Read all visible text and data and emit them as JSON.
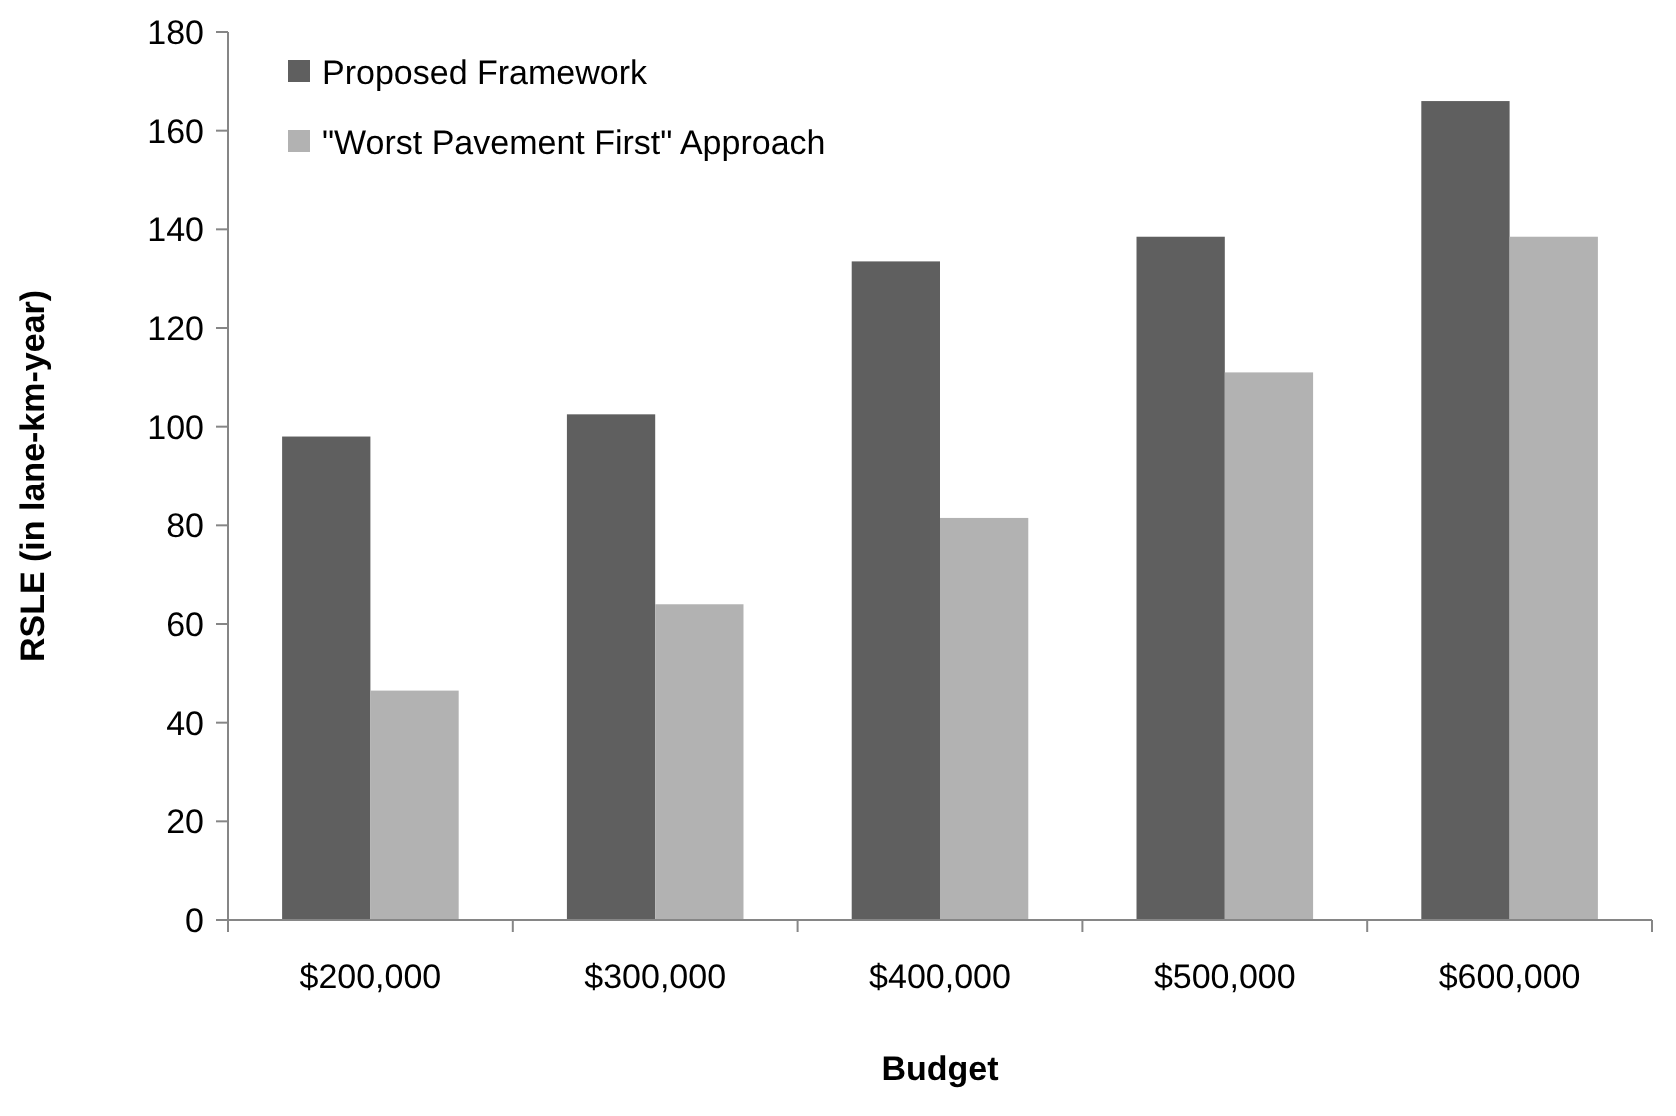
{
  "chart_data": {
    "type": "bar",
    "xlabel": "Budget",
    "ylabel": "RSLE (in lane-km-year)",
    "categories": [
      "$200,000",
      "$300,000",
      "$400,000",
      "$500,000",
      "$600,000"
    ],
    "series": [
      {
        "name": "Proposed Framework",
        "color": "#5f5f5f",
        "values": [
          98,
          102.5,
          133.5,
          138.5,
          166
        ]
      },
      {
        "name": "\"Worst Pavement First\" Approach",
        "color": "#b2b2b2",
        "values": [
          46.5,
          64,
          81.5,
          111,
          138.5
        ]
      }
    ],
    "ylim": [
      0,
      180
    ],
    "yticks": [
      0,
      20,
      40,
      60,
      80,
      100,
      120,
      140,
      160,
      180
    ],
    "grid": false,
    "legend": "top left"
  }
}
